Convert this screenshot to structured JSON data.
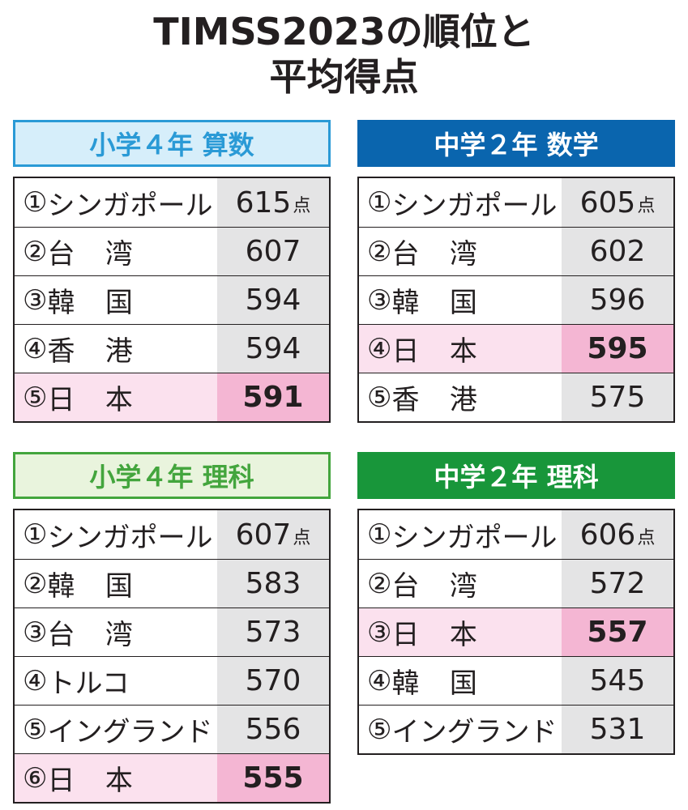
{
  "title": {
    "line1": "TIMSS2023の順位と",
    "line2": "平均得点"
  },
  "unit": "点",
  "colors": {
    "elem_math": "#d6eefa",
    "elem_math_border": "#2a9ad6",
    "mid_math": "#0a65ae",
    "elem_sci": "#e9f4dd",
    "elem_sci_border": "#43a53d",
    "mid_sci": "#18963a",
    "japan_row": "#fbe1ee",
    "japan_score": "#f4b6d3"
  },
  "panels": {
    "elem_math": {
      "header": "小学４年  算数",
      "rows": [
        {
          "rank": "①",
          "name": "シンガポール",
          "score": "615"
        },
        {
          "rank": "②",
          "name": "台湾",
          "score": "607"
        },
        {
          "rank": "③",
          "name": "韓国",
          "score": "594"
        },
        {
          "rank": "④",
          "name": "香港",
          "score": "594"
        },
        {
          "rank": "⑤",
          "name": "日本",
          "score": "591"
        }
      ]
    },
    "mid_math": {
      "header": "中学２年  数学",
      "rows": [
        {
          "rank": "①",
          "name": "シンガポール",
          "score": "605"
        },
        {
          "rank": "②",
          "name": "台湾",
          "score": "602"
        },
        {
          "rank": "③",
          "name": "韓国",
          "score": "596"
        },
        {
          "rank": "④",
          "name": "日本",
          "score": "595"
        },
        {
          "rank": "⑤",
          "name": "香港",
          "score": "575"
        }
      ]
    },
    "elem_sci": {
      "header": "小学４年  理科",
      "rows": [
        {
          "rank": "①",
          "name": "シンガポール",
          "score": "607"
        },
        {
          "rank": "②",
          "name": "韓国",
          "score": "583"
        },
        {
          "rank": "③",
          "name": "台湾",
          "score": "573"
        },
        {
          "rank": "④",
          "name": "トルコ",
          "score": "570"
        },
        {
          "rank": "⑤",
          "name": "イングランド",
          "score": "556"
        },
        {
          "rank": "⑥",
          "name": "日本",
          "score": "555"
        }
      ]
    },
    "mid_sci": {
      "header": "中学２年  理科",
      "rows": [
        {
          "rank": "①",
          "name": "シンガポール",
          "score": "606"
        },
        {
          "rank": "②",
          "name": "台湾",
          "score": "572"
        },
        {
          "rank": "③",
          "name": "日本",
          "score": "557"
        },
        {
          "rank": "④",
          "name": "韓国",
          "score": "545"
        },
        {
          "rank": "⑤",
          "name": "イングランド",
          "score": "531"
        }
      ]
    }
  }
}
